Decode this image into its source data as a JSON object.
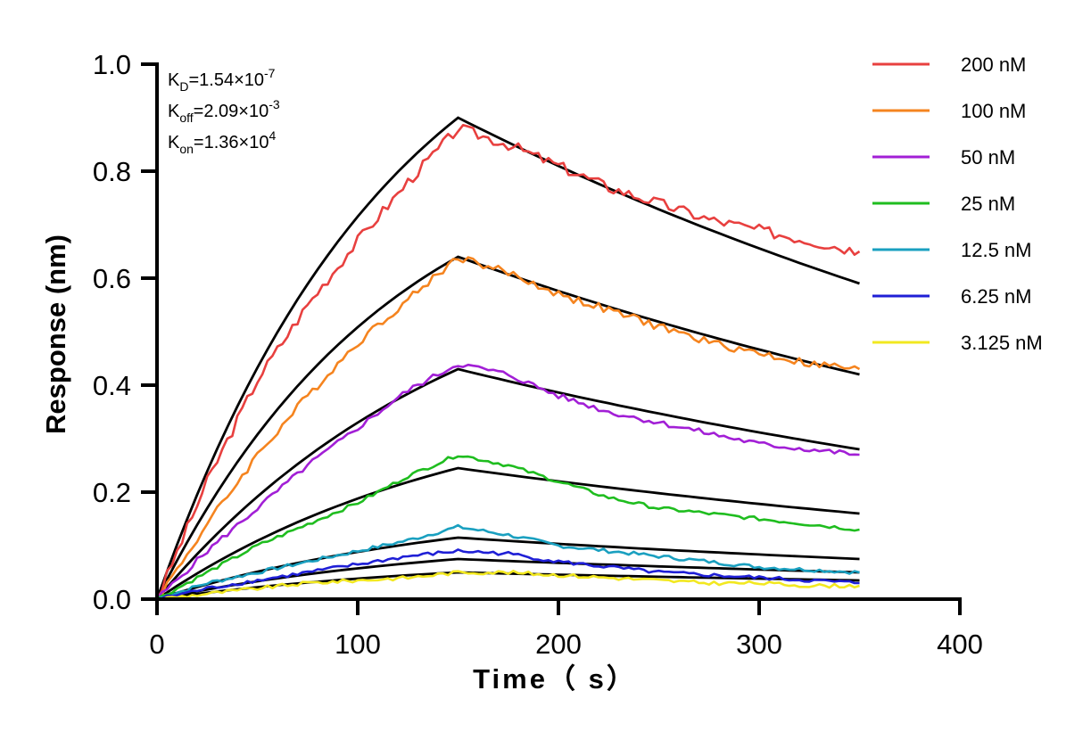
{
  "chart_data": {
    "type": "line",
    "xlabel": "Time（ s）",
    "ylabel": "Response (nm)",
    "xlim": [
      0,
      400
    ],
    "ylim": [
      0,
      1.0
    ],
    "x_ticks": [
      0,
      100,
      200,
      300,
      400
    ],
    "x_tick_labels": [
      "0",
      "100",
      "200",
      "300",
      "400"
    ],
    "y_ticks": [
      0,
      0.2,
      0.4,
      0.6,
      0.8,
      1.0
    ],
    "y_tick_labels": [
      "0.0",
      "0.2",
      "0.4",
      "0.6",
      "0.8",
      "1.0"
    ],
    "grid": false,
    "legend_position": "right",
    "annotations": {
      "kd": {
        "base": "K",
        "sub": "D",
        "value": "=1.54×10",
        "sup": "-7"
      },
      "koff": {
        "base": "K",
        "sub": "off",
        "value": "=2.09×10",
        "sup": "-3"
      },
      "kon": {
        "base": "K",
        "sub": "on",
        "value": "=1.36×10",
        "sup": "4"
      }
    },
    "association_end": 150,
    "dissociation_end": 350,
    "series": [
      {
        "name": "200 nM",
        "color": "#e8403f",
        "measured": {
          "x": [
            0,
            25,
            50,
            75,
            100,
            125,
            150,
            175,
            200,
            225,
            250,
            275,
            300,
            325,
            350
          ],
          "y": [
            0,
            0.22,
            0.41,
            0.55,
            0.67,
            0.78,
            0.88,
            0.85,
            0.81,
            0.77,
            0.74,
            0.71,
            0.69,
            0.67,
            0.65
          ]
        },
        "fit": {
          "x": [
            0,
            150,
            350
          ],
          "y": [
            0,
            0.9,
            0.59
          ]
        }
      },
      {
        "name": "100 nM",
        "color": "#f5841f",
        "measured": {
          "x": [
            0,
            25,
            50,
            75,
            100,
            125,
            150,
            175,
            200,
            225,
            250,
            275,
            300,
            325,
            350
          ],
          "y": [
            0,
            0.14,
            0.27,
            0.38,
            0.48,
            0.56,
            0.64,
            0.61,
            0.57,
            0.54,
            0.51,
            0.48,
            0.46,
            0.44,
            0.43
          ]
        },
        "fit": {
          "x": [
            0,
            150,
            350
          ],
          "y": [
            0,
            0.64,
            0.42
          ]
        }
      },
      {
        "name": "50 nM",
        "color": "#a21fd6",
        "measured": {
          "x": [
            0,
            25,
            50,
            75,
            100,
            125,
            150,
            175,
            200,
            225,
            250,
            275,
            300,
            325,
            350
          ],
          "y": [
            0,
            0.09,
            0.17,
            0.25,
            0.32,
            0.39,
            0.44,
            0.42,
            0.38,
            0.35,
            0.33,
            0.31,
            0.29,
            0.28,
            0.27
          ]
        },
        "fit": {
          "x": [
            0,
            150,
            350
          ],
          "y": [
            0,
            0.43,
            0.28
          ]
        }
      },
      {
        "name": "25 nM",
        "color": "#1fbd1f",
        "measured": {
          "x": [
            0,
            25,
            50,
            75,
            100,
            125,
            150,
            175,
            200,
            225,
            250,
            275,
            300,
            325,
            350
          ],
          "y": [
            0,
            0.05,
            0.1,
            0.14,
            0.18,
            0.23,
            0.27,
            0.25,
            0.22,
            0.19,
            0.17,
            0.16,
            0.15,
            0.14,
            0.13
          ]
        },
        "fit": {
          "x": [
            0,
            150,
            350
          ],
          "y": [
            0,
            0.245,
            0.16
          ]
        }
      },
      {
        "name": "12.5 nM",
        "color": "#1aa0c0",
        "measured": {
          "x": [
            0,
            25,
            50,
            75,
            100,
            125,
            150,
            175,
            200,
            225,
            250,
            275,
            300,
            325,
            350
          ],
          "y": [
            0,
            0.03,
            0.05,
            0.07,
            0.09,
            0.11,
            0.135,
            0.12,
            0.1,
            0.09,
            0.08,
            0.07,
            0.06,
            0.055,
            0.05
          ]
        },
        "fit": {
          "x": [
            0,
            150,
            350
          ],
          "y": [
            0,
            0.115,
            0.075
          ]
        }
      },
      {
        "name": "6.25 nM",
        "color": "#1f1fd6",
        "measured": {
          "x": [
            0,
            25,
            50,
            75,
            100,
            125,
            150,
            175,
            200,
            225,
            250,
            275,
            300,
            325,
            350
          ],
          "y": [
            0,
            0.02,
            0.035,
            0.05,
            0.065,
            0.08,
            0.09,
            0.085,
            0.07,
            0.06,
            0.05,
            0.045,
            0.04,
            0.035,
            0.03
          ]
        },
        "fit": {
          "x": [
            0,
            150,
            350
          ],
          "y": [
            0,
            0.075,
            0.05
          ]
        }
      },
      {
        "name": "3.125 nM",
        "color": "#f2e820",
        "measured": {
          "x": [
            0,
            25,
            50,
            75,
            100,
            125,
            150,
            175,
            200,
            225,
            250,
            275,
            300,
            325,
            350
          ],
          "y": [
            0,
            0.01,
            0.02,
            0.03,
            0.035,
            0.04,
            0.05,
            0.05,
            0.045,
            0.04,
            0.035,
            0.03,
            0.03,
            0.025,
            0.025
          ]
        },
        "fit": {
          "x": [
            0,
            150,
            350
          ],
          "y": [
            0,
            0.05,
            0.035
          ]
        }
      }
    ]
  }
}
